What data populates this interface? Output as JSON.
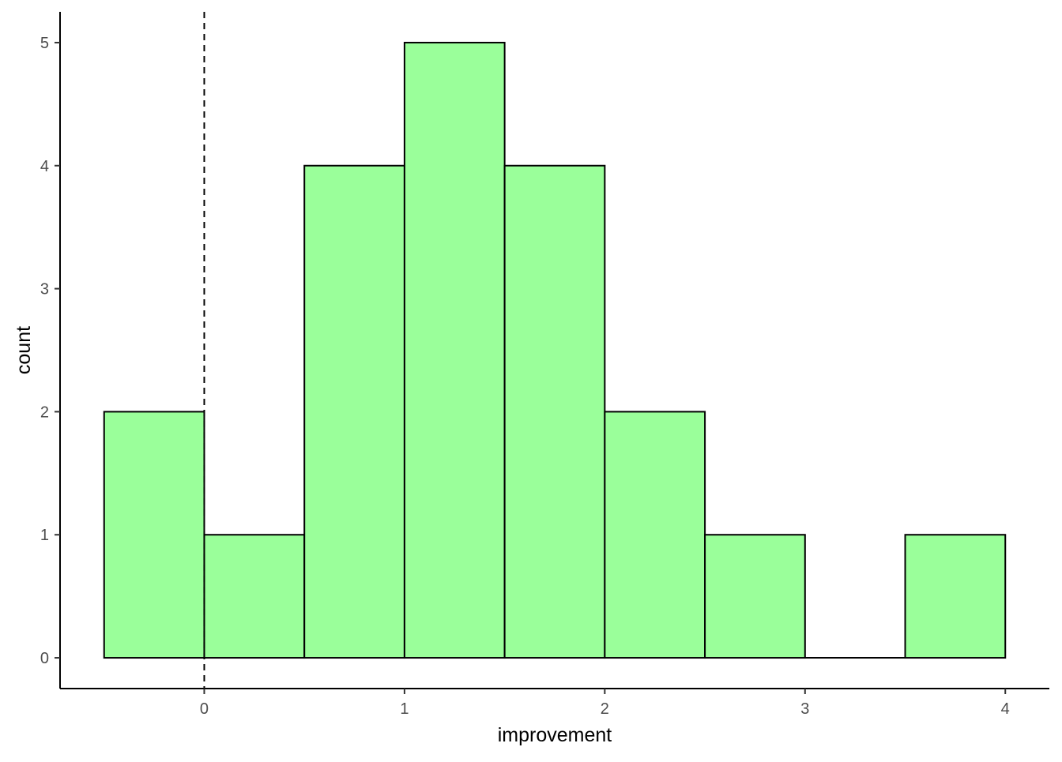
{
  "chart_data": {
    "type": "bar",
    "subtype": "histogram",
    "xlabel": "improvement",
    "ylabel": "count",
    "bins": [
      {
        "x0": -0.5,
        "x1": 0.0,
        "count": 2
      },
      {
        "x0": 0.0,
        "x1": 0.5,
        "count": 1
      },
      {
        "x0": 0.5,
        "x1": 1.0,
        "count": 4
      },
      {
        "x0": 1.0,
        "x1": 1.5,
        "count": 5
      },
      {
        "x0": 1.5,
        "x1": 2.0,
        "count": 4
      },
      {
        "x0": 2.0,
        "x1": 2.5,
        "count": 2
      },
      {
        "x0": 2.5,
        "x1": 3.0,
        "count": 1
      },
      {
        "x0": 3.0,
        "x1": 3.5,
        "count": 0
      },
      {
        "x0": 3.5,
        "x1": 4.0,
        "count": 1
      }
    ],
    "xlim": [
      -0.72,
      4.22
    ],
    "ylim": [
      -0.25,
      5.25
    ],
    "x_ticks": [
      "0",
      "1",
      "2",
      "3",
      "4"
    ],
    "y_ticks": [
      "0",
      "1",
      "2",
      "3",
      "4",
      "5"
    ],
    "reference_line": {
      "x": 0,
      "style": "dashed"
    },
    "grid": false,
    "legend": false,
    "colors": {
      "bar_fill": "#9aff9a",
      "bar_outline": "#000000",
      "axis": "#000000",
      "tick_label": "#4d4d4d",
      "background": "#ffffff"
    }
  }
}
